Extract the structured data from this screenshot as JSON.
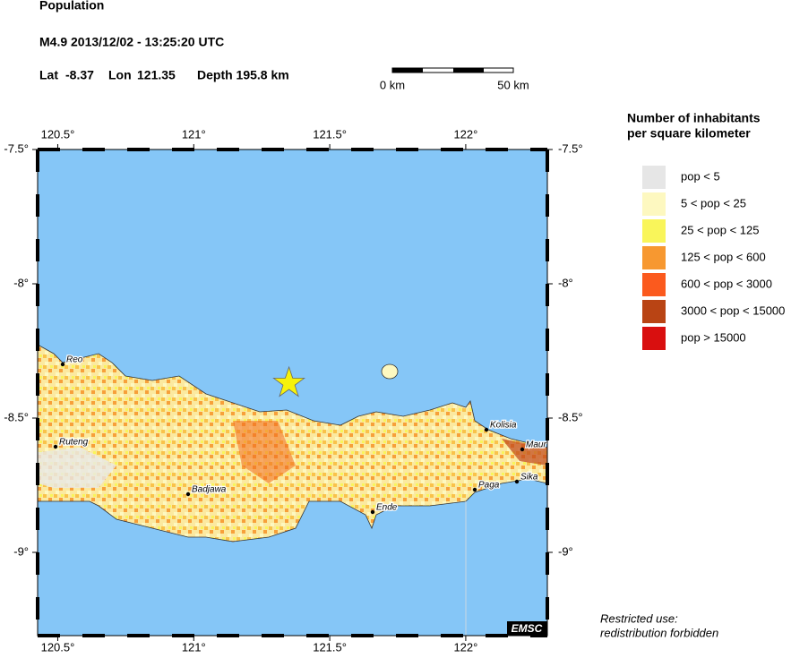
{
  "header": {
    "title": "Population",
    "event": "M4.9  2013/12/02 - 13:25:20 UTC",
    "lat_label": "Lat",
    "lat": -8.37,
    "lon_label": "Lon",
    "lon": 121.35,
    "depth": "Depth 195.8 km"
  },
  "scale_bar": {
    "start": "0 km",
    "end": "50 km"
  },
  "map": {
    "lonlim": [
      120.426,
      122.3
    ],
    "latlim": [
      -7.5,
      -9.31
    ],
    "lon_ticks": [
      {
        "value": 120.5,
        "label": "120.5°"
      },
      {
        "value": 121,
        "label": "121°"
      },
      {
        "value": 121.5,
        "label": "121.5°"
      },
      {
        "value": 122,
        "label": "122°"
      }
    ],
    "lat_ticks": [
      {
        "value": -7.5,
        "label": "-7.5°"
      },
      {
        "value": -8,
        "label": "-8°"
      },
      {
        "value": -8.5,
        "label": "-8.5°"
      },
      {
        "value": -9,
        "label": "-9°"
      }
    ],
    "cities": [
      "Reo",
      "Ruteng",
      "Badjawa",
      "Ende",
      "Paga",
      "Kolisia",
      "Maur",
      "Sika"
    ],
    "credit": "EMSC"
  },
  "legend": {
    "title": [
      "Number of inhabitants",
      "per square kilometer"
    ],
    "items": [
      {
        "label": "pop < 5",
        "color": "#e6e6e6"
      },
      {
        "label": "5 < pop < 25",
        "color": "#fdf8c0"
      },
      {
        "label": "25 < pop < 125",
        "color": "#f9f55a"
      },
      {
        "label": "125 < pop < 600",
        "color": "#f79830"
      },
      {
        "label": "600 < pop < 3000",
        "color": "#fb5a1e"
      },
      {
        "label": "3000 < pop < 15000",
        "color": "#b94414"
      },
      {
        "label": "pop > 15000",
        "color": "#d90f0f"
      }
    ]
  },
  "note": [
    "Restricted use:",
    "redistribution forbidden"
  ]
}
